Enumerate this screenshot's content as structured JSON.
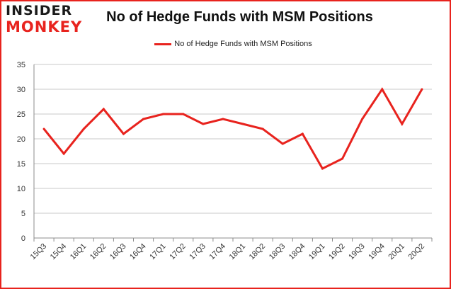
{
  "logo": {
    "line1": "INSIDER",
    "line2": "MONKEY"
  },
  "chart_data": {
    "type": "line",
    "title": "No of Hedge Funds with MSM Positions",
    "categories": [
      "15Q3",
      "15Q4",
      "16Q1",
      "16Q2",
      "16Q3",
      "16Q4",
      "17Q1",
      "17Q2",
      "17Q3",
      "17Q4",
      "18Q1",
      "18Q2",
      "18Q3",
      "18Q4",
      "19Q1",
      "19Q2",
      "19Q3",
      "19Q4",
      "20Q1",
      "20Q2"
    ],
    "series": [
      {
        "name": "No of Hedge Funds with MSM Positions",
        "values": [
          22,
          17,
          22,
          26,
          21,
          24,
          25,
          25,
          23,
          24,
          23,
          22,
          19,
          21,
          14,
          16,
          24,
          30,
          23,
          30
        ],
        "color": "#e8231e"
      }
    ],
    "ylim": [
      0,
      35
    ],
    "yticks": [
      0,
      5,
      10,
      15,
      20,
      25,
      30,
      35
    ],
    "grid": true,
    "legend_position": "top-center",
    "border_color": "#e8231e"
  }
}
